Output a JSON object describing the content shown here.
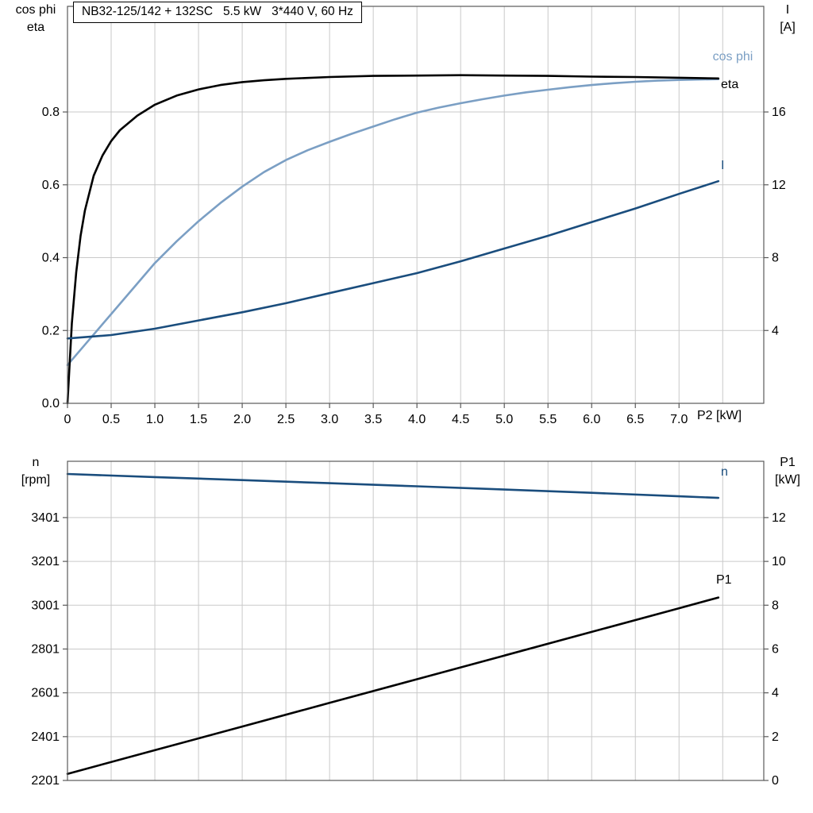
{
  "theme": {
    "background": "#ffffff",
    "grid": "#c9c9c9",
    "axis": "#595959",
    "text": "#000000",
    "black": "#000000",
    "dark_blue": "#1a4d7d",
    "light_blue": "#7b9fc4"
  },
  "chart_data": [
    {
      "type": "line",
      "title": "NB32-125/142 + 132SC   5.5 kW   3*440 V, 60 Hz",
      "x_axis": {
        "label": "P2 [kW]",
        "min": 0,
        "max": 7.97,
        "ticks": [
          0,
          0.5,
          1,
          1.5,
          2,
          2.5,
          3,
          3.5,
          4,
          4.5,
          5,
          5.5,
          6,
          6.5,
          7
        ],
        "tick_labels": [
          "0",
          "0.5",
          "1.0",
          "1.5",
          "2.0",
          "2.5",
          "3.0",
          "3.5",
          "4.0",
          "4.5",
          "5.0",
          "5.5",
          "6.0",
          "6.5",
          "7.0"
        ],
        "grid_ticks": [
          0.5,
          1,
          1.5,
          2,
          2.5,
          3,
          3.5,
          4,
          4.5,
          5,
          5.5,
          6,
          6.5,
          7,
          7.5
        ]
      },
      "y_left": {
        "name_lines": [
          "cos phi",
          "eta"
        ],
        "min": 0,
        "max": 1.09,
        "ticks": [
          0,
          0.2,
          0.4,
          0.6,
          0.8
        ],
        "tick_labels": [
          "0.0",
          "0.2",
          "0.4",
          "0.6",
          "0.8"
        ],
        "grid_ticks": [
          0.2,
          0.4,
          0.6,
          0.8
        ]
      },
      "y_right": {
        "name_lines": [
          "I",
          "[A]"
        ],
        "min": 0,
        "max": 21.8,
        "ticks": [
          4,
          8,
          12,
          16
        ],
        "tick_labels": [
          "4",
          "8",
          "12",
          "16"
        ]
      },
      "series": [
        {
          "name": "cos phi",
          "color": "#7b9fc4",
          "axis": "left",
          "points": [
            [
              0,
              0.105
            ],
            [
              0.25,
              0.175
            ],
            [
              0.5,
              0.245
            ],
            [
              0.75,
              0.315
            ],
            [
              1,
              0.385
            ],
            [
              1.25,
              0.445
            ],
            [
              1.5,
              0.5
            ],
            [
              1.75,
              0.55
            ],
            [
              2,
              0.595
            ],
            [
              2.25,
              0.635
            ],
            [
              2.5,
              0.668
            ],
            [
              2.75,
              0.695
            ],
            [
              3,
              0.718
            ],
            [
              3.25,
              0.74
            ],
            [
              3.5,
              0.76
            ],
            [
              3.75,
              0.78
            ],
            [
              4,
              0.798
            ],
            [
              4.25,
              0.812
            ],
            [
              4.5,
              0.824
            ],
            [
              4.75,
              0.835
            ],
            [
              5,
              0.845
            ],
            [
              5.25,
              0.854
            ],
            [
              5.5,
              0.861
            ],
            [
              5.75,
              0.868
            ],
            [
              6,
              0.874
            ],
            [
              6.25,
              0.879
            ],
            [
              6.5,
              0.883
            ],
            [
              6.75,
              0.886
            ],
            [
              7,
              0.888
            ],
            [
              7.45,
              0.89
            ]
          ]
        },
        {
          "name": "eta",
          "color": "#000000",
          "axis": "left",
          "points": [
            [
              0,
              0
            ],
            [
              0.05,
              0.22
            ],
            [
              0.1,
              0.36
            ],
            [
              0.15,
              0.46
            ],
            [
              0.2,
              0.53
            ],
            [
              0.3,
              0.625
            ],
            [
              0.4,
              0.68
            ],
            [
              0.5,
              0.72
            ],
            [
              0.6,
              0.75
            ],
            [
              0.8,
              0.79
            ],
            [
              1,
              0.82
            ],
            [
              1.25,
              0.845
            ],
            [
              1.5,
              0.862
            ],
            [
              1.75,
              0.874
            ],
            [
              2,
              0.882
            ],
            [
              2.25,
              0.887
            ],
            [
              2.5,
              0.891
            ],
            [
              3,
              0.896
            ],
            [
              3.5,
              0.899
            ],
            [
              4,
              0.9
            ],
            [
              4.5,
              0.901
            ],
            [
              5,
              0.9
            ],
            [
              5.5,
              0.899
            ],
            [
              6,
              0.897
            ],
            [
              6.5,
              0.896
            ],
            [
              7,
              0.894
            ],
            [
              7.45,
              0.892
            ]
          ]
        },
        {
          "name": "I",
          "color": "#1a4d7d",
          "axis": "right",
          "points": [
            [
              0,
              3.56
            ],
            [
              0.5,
              3.75
            ],
            [
              1,
              4.1
            ],
            [
              1.5,
              4.55
            ],
            [
              2,
              5
            ],
            [
              2.5,
              5.5
            ],
            [
              3,
              6.05
            ],
            [
              3.5,
              6.6
            ],
            [
              4,
              7.15
            ],
            [
              4.5,
              7.8
            ],
            [
              5,
              8.5
            ],
            [
              5.5,
              9.2
            ],
            [
              6,
              9.95
            ],
            [
              6.5,
              10.7
            ],
            [
              7,
              11.5
            ],
            [
              7.45,
              12.2
            ]
          ]
        }
      ]
    },
    {
      "type": "line",
      "x_axis": {
        "label": "",
        "min": 0,
        "max": 7.97,
        "ticks": [],
        "tick_labels": [],
        "grid_ticks": [
          0.5,
          1,
          1.5,
          2,
          2.5,
          3,
          3.5,
          4,
          4.5,
          5,
          5.5,
          6,
          6.5,
          7,
          7.5
        ]
      },
      "y_left": {
        "name_lines": [
          "n",
          "[rpm]"
        ],
        "min": 2201,
        "max": 3658,
        "ticks": [
          2201,
          2401,
          2601,
          2801,
          3001,
          3201,
          3401
        ],
        "tick_labels": [
          "2201",
          "2401",
          "2601",
          "2801",
          "3001",
          "3201",
          "3401"
        ],
        "grid_ticks": [
          2401,
          2601,
          2801,
          3001,
          3201,
          3401
        ]
      },
      "y_right": {
        "name_lines": [
          "P1",
          "[kW]"
        ],
        "min": 0,
        "max": 14.57,
        "ticks": [
          0,
          2,
          4,
          6,
          8,
          10,
          12
        ],
        "tick_labels": [
          "0",
          "2",
          "4",
          "6",
          "8",
          "10",
          "12"
        ]
      },
      "series": [
        {
          "name": "n",
          "color": "#1a4d7d",
          "axis": "left",
          "points": [
            [
              0,
              3600
            ],
            [
              1,
              3586
            ],
            [
              2,
              3572
            ],
            [
              3,
              3558
            ],
            [
              4,
              3544
            ],
            [
              5,
              3529
            ],
            [
              6,
              3514
            ],
            [
              7,
              3498
            ],
            [
              7.45,
              3491
            ]
          ]
        },
        {
          "name": "P1",
          "color": "#000000",
          "axis": "right",
          "points": [
            [
              0,
              0.3
            ],
            [
              1,
              1.38
            ],
            [
              2,
              2.46
            ],
            [
              3,
              3.54
            ],
            [
              4,
              4.62
            ],
            [
              5,
              5.7
            ],
            [
              6,
              6.78
            ],
            [
              7,
              7.86
            ],
            [
              7.45,
              8.35
            ]
          ]
        }
      ]
    }
  ]
}
